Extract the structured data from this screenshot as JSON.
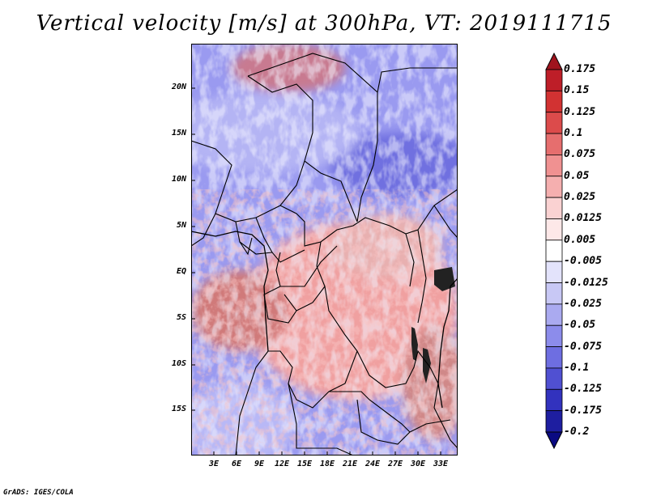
{
  "title": "Vertical velocity [m/s] at 300hPa, VT: 2019111715",
  "credit": "GrADS: IGES/COLA",
  "map": {
    "variable": "Vertical velocity",
    "level": "300hPa",
    "valid_time": "2019111715",
    "lat_ticks": [
      "20N",
      "15N",
      "10N",
      "5N",
      "EQ",
      "5S",
      "10S",
      "15S"
    ],
    "lon_ticks": [
      "3E",
      "6E",
      "9E",
      "12E",
      "15E",
      "18E",
      "21E",
      "24E",
      "27E",
      "30E",
      "33E"
    ]
  },
  "colorbar": {
    "labels": [
      "0.175",
      "0.15",
      "0.125",
      "0.1",
      "0.075",
      "0.05",
      "0.025",
      "0.0125",
      "0.005",
      "-0.005",
      "-0.0125",
      "-0.025",
      "-0.05",
      "-0.075",
      "-0.1",
      "-0.125",
      "-0.175",
      "-0.2"
    ],
    "colors": [
      "#a0141e",
      "#be1e28",
      "#d23232",
      "#dc4b4b",
      "#e66e6e",
      "#f09191",
      "#f5afaf",
      "#fad2d2",
      "#fde8e8",
      "#ffffff",
      "#e3e3fb",
      "#c8c8f5",
      "#aaaaf0",
      "#8c8ceb",
      "#6e6ee1",
      "#5050d2",
      "#3232be",
      "#1e1ea0",
      "#0a0a82"
    ]
  }
}
